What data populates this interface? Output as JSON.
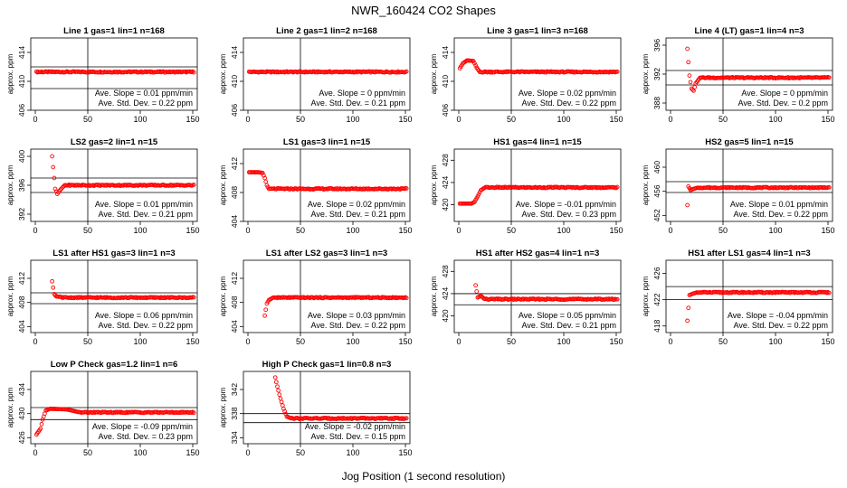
{
  "figure": {
    "title": "NWR_160424  CO2 Shapes",
    "xlabel": "Jog Position (1 second resolution)",
    "ylabel": "approx. ppm",
    "slope_prefix": "Ave. Slope =",
    "sd_prefix": "Ave. Std. Dev. =",
    "slope_unit": "ppm/min",
    "sd_unit": "ppm"
  },
  "colors": {
    "points": "#ff0000",
    "axes": "#000000",
    "background": "#ffffff"
  },
  "chart_data": [
    {
      "type": "scatter",
      "title": "Line 1 gas=1 lin=1 n=168",
      "xlim": [
        0,
        150
      ],
      "ylim": [
        406,
        416
      ],
      "xticks": [
        0,
        50,
        100,
        150
      ],
      "yticks": [
        406,
        410,
        414
      ],
      "hlines": [
        412,
        409
      ],
      "vline": 50,
      "slope": "0.01",
      "sd": "0.22",
      "shape": {
        "start": 1,
        "end": 151,
        "base": 411.3,
        "spike": []
      }
    },
    {
      "type": "scatter",
      "title": "Line 2 gas=1 lin=2 n=168",
      "xlim": [
        0,
        150
      ],
      "ylim": [
        406,
        416
      ],
      "xticks": [
        0,
        50,
        100,
        150
      ],
      "yticks": [
        406,
        410,
        414
      ],
      "hlines": [],
      "vline": 50,
      "slope": "0",
      "sd": "0.21",
      "shape": {
        "start": 1,
        "end": 151,
        "base": 411.3,
        "spike": []
      }
    },
    {
      "type": "scatter",
      "title": "Line 3 gas=1 lin=3 n=168",
      "xlim": [
        0,
        150
      ],
      "ylim": [
        406,
        416
      ],
      "xticks": [
        0,
        50,
        100,
        150
      ],
      "yticks": [
        406,
        410,
        414
      ],
      "hlines": [],
      "vline": 50,
      "slope": "0.02",
      "sd": "0.22",
      "shape": {
        "start": 1,
        "end": 151,
        "base": 411.3,
        "spike": [
          [
            1,
            411.8
          ],
          [
            4,
            412.5
          ],
          [
            8,
            412.9
          ],
          [
            14,
            412.8
          ],
          [
            17,
            411.9
          ],
          [
            19,
            411.5
          ]
        ]
      }
    },
    {
      "type": "scatter",
      "title": "Line 4 (LT) gas=1 lin=4 n=3",
      "xlim": [
        0,
        150
      ],
      "ylim": [
        387,
        397
      ],
      "xticks": [
        0,
        50,
        100,
        150
      ],
      "yticks": [
        388,
        392,
        396
      ],
      "hlines": [
        392.5,
        390.5
      ],
      "vline": 50,
      "slope": "0",
      "sd": "0.2",
      "shape": {
        "start": 16,
        "end": 151,
        "base": 391.5,
        "spike": [
          [
            16,
            395.5
          ],
          [
            18,
            391.8
          ],
          [
            20,
            390
          ],
          [
            22,
            389.7
          ],
          [
            24,
            390.7
          ],
          [
            28,
            391.5
          ]
        ]
      }
    },
    {
      "type": "scatter",
      "title": "LS2 gas=2 lin=1 n=15",
      "xlim": [
        0,
        150
      ],
      "ylim": [
        391,
        401
      ],
      "xticks": [
        0,
        50,
        100,
        150
      ],
      "yticks": [
        392,
        396,
        400
      ],
      "hlines": [
        397,
        395
      ],
      "vline": 50,
      "slope": "0.01",
      "sd": "0.21",
      "shape": {
        "start": 16,
        "end": 151,
        "base": 396,
        "spike": [
          [
            16,
            400
          ],
          [
            17,
            398.5
          ],
          [
            19,
            395.5
          ],
          [
            21,
            394.8
          ],
          [
            24,
            395.4
          ],
          [
            28,
            396
          ]
        ]
      }
    },
    {
      "type": "scatter",
      "title": "LS1 gas=3 lin=1 n=15",
      "xlim": [
        0,
        150
      ],
      "ylim": [
        404,
        414
      ],
      "xticks": [
        0,
        50,
        100,
        150
      ],
      "yticks": [
        404,
        408,
        412
      ],
      "hlines": [],
      "vline": 50,
      "slope": "0.02",
      "sd": "0.21",
      "shape": {
        "start": 1,
        "end": 151,
        "base": 408.5,
        "spike": [
          [
            1,
            410.8
          ],
          [
            10,
            410.8
          ],
          [
            14,
            410.7
          ],
          [
            16,
            410
          ],
          [
            18,
            409
          ],
          [
            20,
            408.5
          ]
        ]
      }
    },
    {
      "type": "scatter",
      "title": "HS1 gas=4 lin=1 n=15",
      "xlim": [
        0,
        150
      ],
      "ylim": [
        417,
        430
      ],
      "xticks": [
        0,
        50,
        100,
        150
      ],
      "yticks": [
        420,
        424,
        428
      ],
      "hlines": [],
      "vline": 50,
      "slope": "-0.01",
      "sd": "0.23",
      "shape": {
        "start": 1,
        "end": 151,
        "base": 423.1,
        "spike": [
          [
            1,
            420.2
          ],
          [
            12,
            420.2
          ],
          [
            15,
            420.5
          ],
          [
            18,
            421.5
          ],
          [
            21,
            422.6
          ],
          [
            25,
            423.1
          ]
        ]
      }
    },
    {
      "type": "scatter",
      "title": "HS2 gas=5 lin=1 n=15",
      "xlim": [
        0,
        150
      ],
      "ylim": [
        451,
        463
      ],
      "xticks": [
        0,
        50,
        100,
        150
      ],
      "yticks": [
        452,
        456,
        460
      ],
      "hlines": [
        457.6,
        455.8
      ],
      "vline": 50,
      "slope": "0.01",
      "sd": "0.22",
      "shape": {
        "start": 16,
        "end": 151,
        "base": 456.6,
        "spike": [
          [
            16,
            453.7
          ],
          [
            17,
            456.8
          ],
          [
            19,
            456.2
          ],
          [
            22,
            456.4
          ],
          [
            26,
            456.6
          ]
        ]
      }
    },
    {
      "type": "scatter",
      "title": "LS1 after HS1 gas=3 lin=1 n=3",
      "xlim": [
        0,
        150
      ],
      "ylim": [
        403,
        415
      ],
      "xticks": [
        0,
        50,
        100,
        150
      ],
      "yticks": [
        404,
        408,
        412
      ],
      "hlines": [
        409.6,
        407.8
      ],
      "vline": 50,
      "slope": "0.06",
      "sd": "0.22",
      "shape": {
        "start": 16,
        "end": 151,
        "base": 408.8,
        "spike": [
          [
            16,
            411.5
          ],
          [
            18,
            409.4
          ],
          [
            20,
            409
          ],
          [
            25,
            408.9
          ]
        ]
      }
    },
    {
      "type": "scatter",
      "title": "LS1 after LS2 gas=3 lin=1 n=3",
      "xlim": [
        0,
        150
      ],
      "ylim": [
        403,
        415
      ],
      "xticks": [
        0,
        50,
        100,
        150
      ],
      "yticks": [
        404,
        408,
        412
      ],
      "hlines": [],
      "vline": 50,
      "slope": "0.03",
      "sd": "0.22",
      "shape": {
        "start": 16,
        "end": 151,
        "base": 408.8,
        "spike": [
          [
            16,
            405.8
          ],
          [
            18,
            407.8
          ],
          [
            20,
            408.4
          ],
          [
            24,
            408.8
          ]
        ]
      }
    },
    {
      "type": "scatter",
      "title": "HS1 after HS2 gas=4 lin=1 n=3",
      "xlim": [
        0,
        150
      ],
      "ylim": [
        417,
        430
      ],
      "xticks": [
        0,
        50,
        100,
        150
      ],
      "yticks": [
        420,
        424,
        428
      ],
      "hlines": [
        424,
        422
      ],
      "vline": 50,
      "slope": "0.05",
      "sd": "0.21",
      "shape": {
        "start": 16,
        "end": 151,
        "base": 423,
        "spike": [
          [
            16,
            425.5
          ],
          [
            18,
            423.3
          ],
          [
            21,
            423.6
          ],
          [
            24,
            423.1
          ]
        ]
      }
    },
    {
      "type": "scatter",
      "title": "HS1 after LS1 gas=4 lin=1 n=3",
      "xlim": [
        0,
        150
      ],
      "ylim": [
        417,
        428
      ],
      "xticks": [
        0,
        50,
        100,
        150
      ],
      "yticks": [
        418,
        422,
        426
      ],
      "hlines": [
        424,
        422
      ],
      "vline": 50,
      "slope": "-0.04",
      "sd": "0.22",
      "shape": {
        "start": 16,
        "end": 151,
        "base": 423.1,
        "spike": [
          [
            16,
            418.8
          ],
          [
            18,
            422.7
          ],
          [
            21,
            422.9
          ],
          [
            25,
            423.1
          ]
        ]
      }
    },
    {
      "type": "scatter",
      "title": "Low P Check gas=1.2 lin=1 n=6",
      "xlim": [
        0,
        150
      ],
      "ylim": [
        425,
        437
      ],
      "xticks": [
        0,
        50,
        100,
        150
      ],
      "yticks": [
        426,
        430,
        434
      ],
      "hlines": [
        431,
        429
      ],
      "vline": 50,
      "slope": "-0.09",
      "sd": "0.23",
      "shape": {
        "start": 1,
        "end": 151,
        "base": 430.2,
        "spike": [
          [
            1,
            426.5
          ],
          [
            3,
            427
          ],
          [
            5,
            427.5
          ],
          [
            7,
            429
          ],
          [
            10,
            430.5
          ],
          [
            14,
            430.8
          ],
          [
            30,
            430.7
          ],
          [
            40,
            430.3
          ]
        ]
      }
    },
    {
      "type": "scatter",
      "title": "High P Check gas=1 lin=0.8 n=3",
      "xlim": [
        0,
        150
      ],
      "ylim": [
        333,
        345
      ],
      "xticks": [
        0,
        50,
        100,
        150
      ],
      "yticks": [
        334,
        338,
        342
      ],
      "hlines": [
        338,
        336.5
      ],
      "vline": 50,
      "slope": "-0.02",
      "sd": "0.15",
      "shape": {
        "start": 26,
        "end": 151,
        "base": 337.2,
        "spike": [
          [
            26,
            344
          ],
          [
            28,
            342.5
          ],
          [
            31,
            340.5
          ],
          [
            34,
            338.8
          ],
          [
            37,
            337.5
          ],
          [
            40,
            337.3
          ]
        ]
      }
    }
  ]
}
